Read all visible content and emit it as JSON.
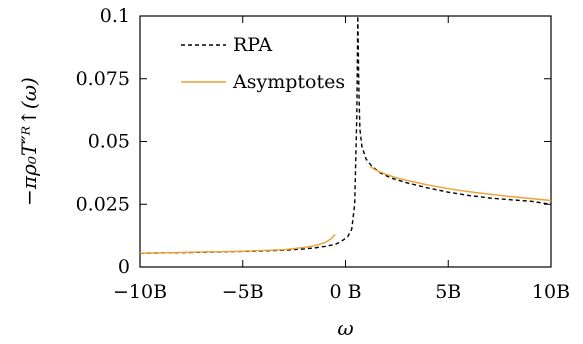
{
  "chart_data": {
    "type": "line",
    "xlabel": "ω",
    "ylabel": "−πρ₀T″ᴿ↑(ω)",
    "xlim": [
      -10,
      10
    ],
    "ylim": [
      0,
      0.1
    ],
    "x_ticks": [
      -10,
      -5,
      0,
      5,
      10
    ],
    "x_tick_labels": [
      "−10B",
      "−5B",
      "0 B",
      "5B",
      "10B"
    ],
    "y_ticks": [
      0,
      0.025,
      0.05,
      0.075,
      0.1
    ],
    "y_tick_labels": [
      "0",
      "0.025",
      "0.05",
      "0.075",
      "0.1"
    ],
    "legend_position": "top-left",
    "series": [
      {
        "name": "RPA",
        "color": "#000000",
        "style": "dashed",
        "x": [
          -10,
          -9,
          -8,
          -7,
          -6,
          -5,
          -4,
          -3,
          -2,
          -1.5,
          -1,
          -0.5,
          -0.3,
          -0.1,
          0.1,
          0.3,
          0.45,
          0.55,
          0.6,
          0.65,
          0.7,
          0.8,
          1.0,
          1.3,
          1.7,
          2.2,
          3,
          4,
          5,
          6,
          7,
          8,
          9,
          10
        ],
        "y": [
          0.0055,
          0.0056,
          0.0057,
          0.0059,
          0.006,
          0.0062,
          0.0064,
          0.0067,
          0.0072,
          0.0076,
          0.0082,
          0.009,
          0.0098,
          0.0108,
          0.012,
          0.015,
          0.025,
          0.06,
          0.1,
          0.07,
          0.055,
          0.048,
          0.043,
          0.04,
          0.0375,
          0.0355,
          0.0335,
          0.0315,
          0.0298,
          0.0285,
          0.0275,
          0.0268,
          0.0262,
          0.025
        ]
      },
      {
        "name": "Asymptotes",
        "color": "#f0a030",
        "style": "solid",
        "segments": [
          {
            "x": [
              -10,
              -9,
              -8,
              -7,
              -6,
              -5,
              -4,
              -3,
              -2,
              -1.5,
              -1,
              -0.7,
              -0.5
            ],
            "y": [
              0.0055,
              0.0056,
              0.0058,
              0.006,
              0.0061,
              0.0063,
              0.0066,
              0.0069,
              0.0078,
              0.0085,
              0.0097,
              0.0112,
              0.013
            ]
          },
          {
            "x": [
              1.2,
              1.5,
              2,
              2.5,
              3,
              4,
              5,
              6,
              7,
              8,
              9,
              10
            ],
            "y": [
              0.04,
              0.0385,
              0.0368,
              0.0355,
              0.0345,
              0.0327,
              0.0312,
              0.03,
              0.029,
              0.0281,
              0.0273,
              0.0265
            ]
          }
        ]
      }
    ]
  }
}
